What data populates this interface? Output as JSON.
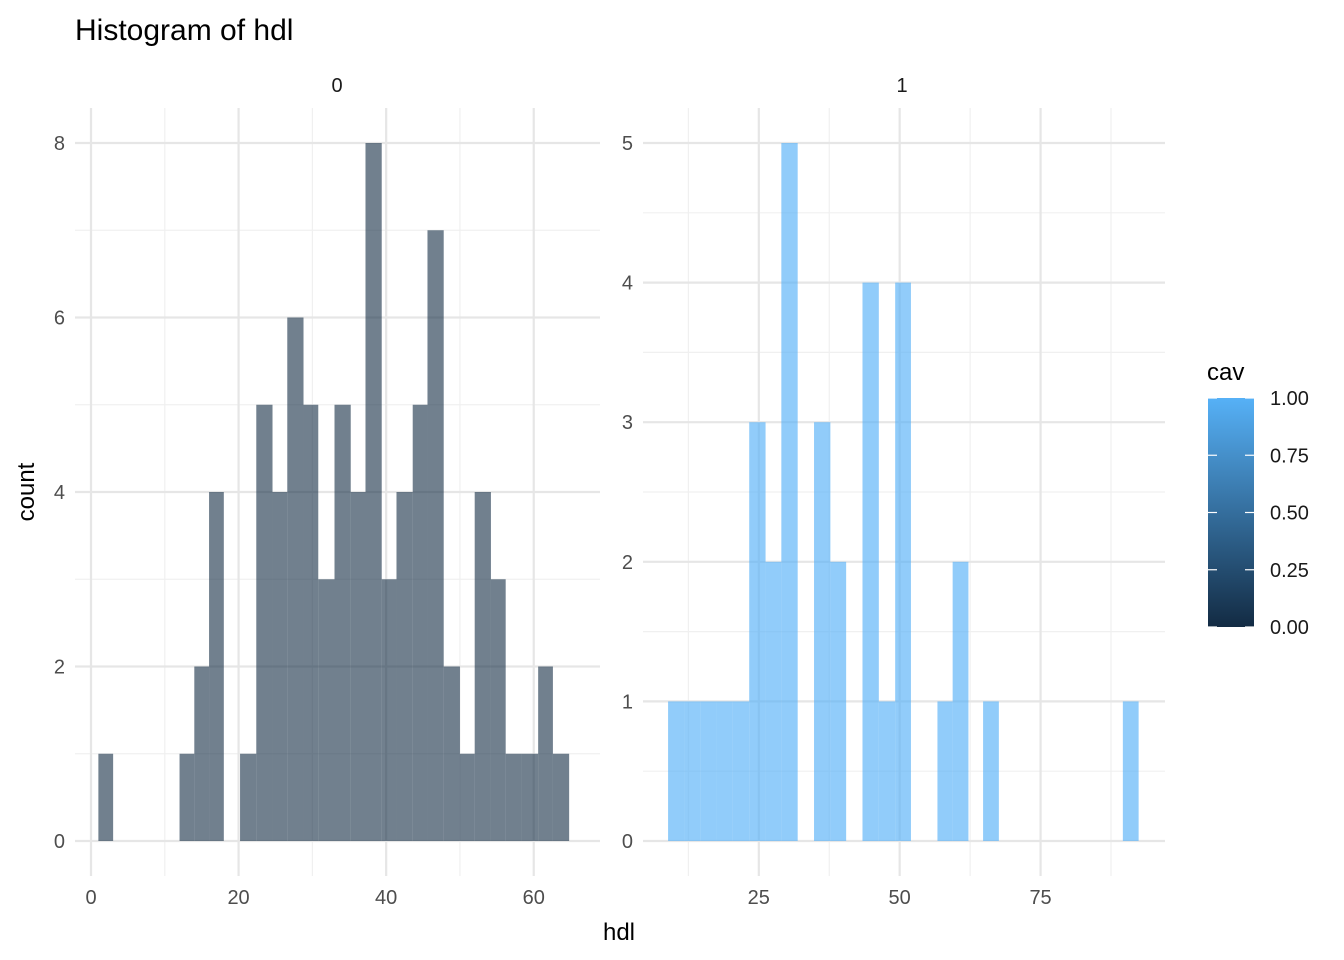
{
  "chart_data": {
    "type": "bar",
    "title": "Histogram of hdl",
    "xlabel": "hdl",
    "ylabel": "count",
    "grid": true,
    "legend_position": "right",
    "legend": {
      "title": "cav",
      "labels": [
        "1.00",
        "0.75",
        "0.50",
        "0.25",
        "0.00"
      ],
      "color_low": "#132B43",
      "color_high": "#56B1F7"
    },
    "panels": [
      {
        "strip": "0",
        "fill": "#132B43",
        "xlim": [
          0,
          66
        ],
        "ylim": [
          0,
          8
        ],
        "x_ticks": [
          0,
          20,
          40,
          60
        ],
        "y_ticks": [
          0,
          2,
          4,
          6,
          8
        ],
        "bins": [
          {
            "x0": 1.0,
            "x1": 3.0,
            "count": 1
          },
          {
            "x0": 12.0,
            "x1": 14.0,
            "count": 1
          },
          {
            "x0": 14.0,
            "x1": 16.0,
            "count": 2
          },
          {
            "x0": 16.0,
            "x1": 18.0,
            "count": 4
          },
          {
            "x0": 20.2,
            "x1": 22.4,
            "count": 1
          },
          {
            "x0": 22.4,
            "x1": 24.6,
            "count": 5
          },
          {
            "x0": 24.6,
            "x1": 26.6,
            "count": 4
          },
          {
            "x0": 26.6,
            "x1": 28.8,
            "count": 6
          },
          {
            "x0": 28.8,
            "x1": 30.8,
            "count": 5
          },
          {
            "x0": 30.8,
            "x1": 33.0,
            "count": 3
          },
          {
            "x0": 33.0,
            "x1": 35.2,
            "count": 5
          },
          {
            "x0": 35.2,
            "x1": 37.2,
            "count": 4
          },
          {
            "x0": 37.2,
            "x1": 39.4,
            "count": 8
          },
          {
            "x0": 39.4,
            "x1": 41.4,
            "count": 3
          },
          {
            "x0": 41.4,
            "x1": 43.6,
            "count": 4
          },
          {
            "x0": 43.6,
            "x1": 45.6,
            "count": 5
          },
          {
            "x0": 45.6,
            "x1": 47.8,
            "count": 7
          },
          {
            "x0": 47.8,
            "x1": 50.0,
            "count": 2
          },
          {
            "x0": 50.0,
            "x1": 52.0,
            "count": 1
          },
          {
            "x0": 52.0,
            "x1": 54.2,
            "count": 4
          },
          {
            "x0": 54.2,
            "x1": 56.2,
            "count": 3
          },
          {
            "x0": 56.2,
            "x1": 58.4,
            "count": 1
          },
          {
            "x0": 58.4,
            "x1": 60.6,
            "count": 1
          },
          {
            "x0": 60.6,
            "x1": 62.6,
            "count": 2
          },
          {
            "x0": 62.6,
            "x1": 64.8,
            "count": 1
          }
        ]
      },
      {
        "strip": "1",
        "fill": "#56B1F7",
        "xlim": [
          8,
          93
        ],
        "ylim": [
          0,
          5
        ],
        "x_ticks": [
          25,
          50,
          75
        ],
        "y_ticks": [
          0,
          1,
          2,
          3,
          4,
          5
        ],
        "bins": [
          {
            "x0": 8.9,
            "x1": 11.8,
            "count": 1
          },
          {
            "x0": 11.8,
            "x1": 14.6,
            "count": 1
          },
          {
            "x0": 14.6,
            "x1": 17.5,
            "count": 1
          },
          {
            "x0": 17.5,
            "x1": 20.4,
            "count": 1
          },
          {
            "x0": 20.4,
            "x1": 23.3,
            "count": 1
          },
          {
            "x0": 23.3,
            "x1": 26.2,
            "count": 3
          },
          {
            "x0": 26.2,
            "x1": 29.0,
            "count": 2
          },
          {
            "x0": 29.0,
            "x1": 31.9,
            "count": 5
          },
          {
            "x0": 34.8,
            "x1": 37.7,
            "count": 3
          },
          {
            "x0": 37.7,
            "x1": 40.5,
            "count": 2
          },
          {
            "x0": 43.4,
            "x1": 46.3,
            "count": 4
          },
          {
            "x0": 46.3,
            "x1": 49.2,
            "count": 1
          },
          {
            "x0": 49.2,
            "x1": 52.0,
            "count": 4
          },
          {
            "x0": 56.7,
            "x1": 59.4,
            "count": 1
          },
          {
            "x0": 59.4,
            "x1": 62.2,
            "count": 2
          },
          {
            "x0": 64.8,
            "x1": 67.6,
            "count": 1
          },
          {
            "x0": 89.6,
            "x1": 92.4,
            "count": 1
          }
        ]
      }
    ]
  }
}
